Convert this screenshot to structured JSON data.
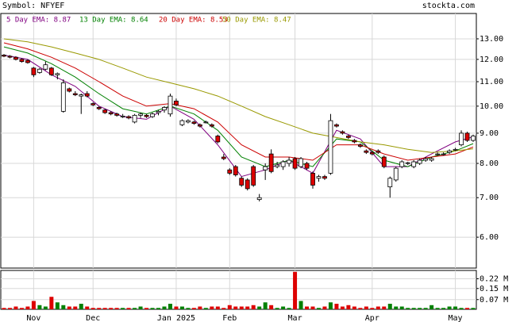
{
  "header": {
    "symbol": "Symbol: NFYEF",
    "site": "stockta.com"
  },
  "chart_data": {
    "type": "candlestick",
    "log_scale": true,
    "categories": [
      null,
      null,
      null,
      null,
      null,
      "Nov",
      null,
      null,
      null,
      null,
      null,
      null,
      null,
      null,
      null,
      "Dec",
      null,
      null,
      null,
      null,
      null,
      null,
      null,
      null,
      null,
      null,
      null,
      null,
      null,
      "Jan 2025",
      null,
      null,
      null,
      null,
      null,
      null,
      null,
      null,
      "Feb",
      null,
      null,
      null,
      null,
      null,
      null,
      null,
      null,
      null,
      null,
      "Mar",
      null,
      null,
      null,
      null,
      null,
      null,
      null,
      null,
      null,
      null,
      null,
      null,
      "Apr",
      null,
      null,
      null,
      null,
      null,
      null,
      null,
      null,
      null,
      null,
      null,
      null,
      null,
      "May",
      null,
      null,
      null
    ],
    "ohlc": [
      [
        12.2,
        12.25,
        12.1,
        12.15
      ],
      [
        12.15,
        12.2,
        12.05,
        12.1
      ],
      [
        12.1,
        12.15,
        11.95,
        12.0
      ],
      [
        12.0,
        12.05,
        11.85,
        11.9
      ],
      [
        11.95,
        12.0,
        11.8,
        11.85
      ],
      [
        11.6,
        11.65,
        11.2,
        11.3
      ],
      [
        11.4,
        11.6,
        11.35,
        11.55
      ],
      [
        11.55,
        11.9,
        11.5,
        11.75
      ],
      [
        11.6,
        11.65,
        11.25,
        11.3
      ],
      [
        11.3,
        11.4,
        11.1,
        11.35
      ],
      [
        9.8,
        11.1,
        9.75,
        10.95
      ],
      [
        10.7,
        10.75,
        10.55,
        10.6
      ],
      [
        10.5,
        10.6,
        10.4,
        10.45
      ],
      [
        10.4,
        10.5,
        9.7,
        10.45
      ],
      [
        10.5,
        10.6,
        10.35,
        10.4
      ],
      [
        10.1,
        10.15,
        10.0,
        10.05
      ],
      [
        9.95,
        10.0,
        9.85,
        9.9
      ],
      [
        9.85,
        9.9,
        9.7,
        9.75
      ],
      [
        9.75,
        9.8,
        9.65,
        9.7
      ],
      [
        9.7,
        9.75,
        9.6,
        9.65
      ],
      [
        9.6,
        9.7,
        9.55,
        9.62
      ],
      [
        9.6,
        9.65,
        9.5,
        9.55
      ],
      [
        9.4,
        9.7,
        9.35,
        9.65
      ],
      [
        9.65,
        9.75,
        9.55,
        9.7
      ],
      [
        9.65,
        9.7,
        9.55,
        9.6
      ],
      [
        9.6,
        9.75,
        9.55,
        9.7
      ],
      [
        9.75,
        9.85,
        9.65,
        9.8
      ],
      [
        9.85,
        10.0,
        9.75,
        9.95
      ],
      [
        9.7,
        10.5,
        9.6,
        10.4
      ],
      [
        10.2,
        10.3,
        10.0,
        10.05
      ],
      [
        9.3,
        9.5,
        9.25,
        9.45
      ],
      [
        9.4,
        9.5,
        9.35,
        9.45
      ],
      [
        9.4,
        9.45,
        9.3,
        9.35
      ],
      [
        9.3,
        9.35,
        9.2,
        9.25
      ],
      [
        9.4,
        9.45,
        9.35,
        9.4
      ],
      [
        9.3,
        9.35,
        9.2,
        9.25
      ],
      [
        8.9,
        8.95,
        8.65,
        8.7
      ],
      [
        8.2,
        8.3,
        8.1,
        8.15
      ],
      [
        7.8,
        7.85,
        7.65,
        7.7
      ],
      [
        7.9,
        7.95,
        7.6,
        7.65
      ],
      [
        7.55,
        7.6,
        7.3,
        7.35
      ],
      [
        7.5,
        7.55,
        7.2,
        7.25
      ],
      [
        7.9,
        7.95,
        7.3,
        7.35
      ],
      [
        6.95,
        7.1,
        6.9,
        7.0
      ],
      [
        7.8,
        8.0,
        7.5,
        7.9
      ],
      [
        8.3,
        8.45,
        7.7,
        7.75
      ],
      [
        7.9,
        8.05,
        7.85,
        7.95
      ],
      [
        7.9,
        8.1,
        7.8,
        8.05
      ],
      [
        8.0,
        8.2,
        7.9,
        8.1
      ],
      [
        8.15,
        8.2,
        7.8,
        7.85
      ],
      [
        7.9,
        8.2,
        7.85,
        8.15
      ],
      [
        8.0,
        8.05,
        7.8,
        7.85
      ],
      [
        7.7,
        7.75,
        7.25,
        7.35
      ],
      [
        7.55,
        7.65,
        7.45,
        7.6
      ],
      [
        7.6,
        7.65,
        7.5,
        7.55
      ],
      [
        7.7,
        9.7,
        7.65,
        9.45
      ],
      [
        9.3,
        9.35,
        9.2,
        9.25
      ],
      [
        9.05,
        9.1,
        8.95,
        9.0
      ],
      [
        8.9,
        8.95,
        8.8,
        8.85
      ],
      [
        8.75,
        8.8,
        8.65,
        8.7
      ],
      [
        8.6,
        8.65,
        8.5,
        8.55
      ],
      [
        8.4,
        8.45,
        8.3,
        8.35
      ],
      [
        8.35,
        8.4,
        8.25,
        8.3
      ],
      [
        8.4,
        8.45,
        8.3,
        8.35
      ],
      [
        8.2,
        8.25,
        7.85,
        7.9
      ],
      [
        7.3,
        7.6,
        7.0,
        7.55
      ],
      [
        7.5,
        7.9,
        7.45,
        7.85
      ],
      [
        7.9,
        8.1,
        7.85,
        8.05
      ],
      [
        8.0,
        8.05,
        7.95,
        8.02
      ],
      [
        7.9,
        8.1,
        7.85,
        8.05
      ],
      [
        8.0,
        8.15,
        7.95,
        8.1
      ],
      [
        8.1,
        8.2,
        8.05,
        8.15
      ],
      [
        8.1,
        8.2,
        8.05,
        8.15
      ],
      [
        8.3,
        8.35,
        8.25,
        8.3
      ],
      [
        8.3,
        8.35,
        8.25,
        8.3
      ],
      [
        8.35,
        8.45,
        8.3,
        8.4
      ],
      [
        8.45,
        8.5,
        8.4,
        8.45
      ],
      [
        8.6,
        9.1,
        8.55,
        9.0
      ],
      [
        9.0,
        9.05,
        8.7,
        8.75
      ],
      [
        8.75,
        8.95,
        8.7,
        8.9
      ]
    ],
    "up_color": "#ffffff",
    "down_color": "#dd0000",
    "series": [
      {
        "name": "5 Day EMA: 8.87",
        "color": "#800080",
        "x": [
          0,
          4,
          8,
          12,
          16,
          20,
          24,
          28,
          32,
          36,
          40,
          44,
          48,
          52,
          56,
          60,
          64,
          68,
          72,
          76,
          79
        ],
        "values": [
          12.2,
          12.0,
          11.3,
          10.8,
          10.0,
          9.6,
          9.5,
          10.0,
          9.5,
          8.6,
          7.6,
          7.8,
          8.1,
          7.7,
          9.1,
          8.8,
          7.9,
          7.9,
          8.3,
          8.7,
          8.87
        ]
      },
      {
        "name": "13 Day EMA: 8.64",
        "color": "#008000",
        "x": [
          0,
          4,
          8,
          12,
          16,
          20,
          24,
          28,
          32,
          36,
          40,
          44,
          48,
          52,
          56,
          60,
          64,
          68,
          72,
          76,
          79
        ],
        "values": [
          12.6,
          12.3,
          11.8,
          11.2,
          10.5,
          9.9,
          9.7,
          10.0,
          9.7,
          9.1,
          8.2,
          7.9,
          8.1,
          7.9,
          8.8,
          8.7,
          8.1,
          7.9,
          8.2,
          8.4,
          8.64
        ]
      },
      {
        "name": "20 Day EMA: 8.53",
        "color": "#cc0000",
        "x": [
          0,
          4,
          8,
          12,
          16,
          20,
          24,
          28,
          32,
          36,
          40,
          44,
          48,
          52,
          56,
          60,
          64,
          68,
          72,
          76,
          79
        ],
        "values": [
          12.8,
          12.5,
          12.1,
          11.6,
          11.0,
          10.4,
          10.0,
          10.1,
          9.9,
          9.4,
          8.6,
          8.2,
          8.2,
          8.1,
          8.6,
          8.6,
          8.3,
          8.1,
          8.2,
          8.3,
          8.53
        ]
      },
      {
        "name": "50 Day EMA: 8.47",
        "color": "#999900",
        "x": [
          0,
          4,
          8,
          12,
          16,
          20,
          24,
          28,
          32,
          36,
          40,
          44,
          48,
          52,
          56,
          60,
          64,
          68,
          72,
          76,
          79
        ],
        "values": [
          13.0,
          12.85,
          12.6,
          12.3,
          12.0,
          11.6,
          11.2,
          10.95,
          10.7,
          10.4,
          10.0,
          9.6,
          9.3,
          9.0,
          8.85,
          8.7,
          8.6,
          8.45,
          8.35,
          8.4,
          8.47
        ]
      }
    ],
    "ylim": [
      5.32,
      14.35
    ],
    "yticks": [
      {
        "value": 13,
        "label": "13.00"
      },
      {
        "value": 12,
        "label": "12.00"
      },
      {
        "value": 11,
        "label": "11.00"
      },
      {
        "value": 10,
        "label": "10.00"
      },
      {
        "value": 9,
        "label": "9.00"
      },
      {
        "value": 8,
        "label": "8.00"
      },
      {
        "value": 7,
        "label": "7.00"
      },
      {
        "value": 6,
        "label": "6.00"
      }
    ],
    "volume": [
      0.01,
      0.01,
      0.02,
      0.01,
      0.02,
      0.06,
      0.03,
      0.02,
      0.09,
      0.05,
      0.03,
      0.02,
      0.02,
      0.04,
      0.02,
      0.01,
      0.01,
      0.01,
      0.01,
      0.01,
      0.01,
      0.01,
      0.01,
      0.02,
      0.01,
      0.01,
      0.01,
      0.02,
      0.04,
      0.02,
      0.02,
      0.01,
      0.01,
      0.02,
      0.01,
      0.02,
      0.02,
      0.01,
      0.03,
      0.02,
      0.02,
      0.02,
      0.03,
      0.02,
      0.05,
      0.03,
      0.01,
      0.02,
      0.01,
      0.27,
      0.06,
      0.02,
      0.02,
      0.01,
      0.02,
      0.05,
      0.04,
      0.02,
      0.03,
      0.02,
      0.01,
      0.02,
      0.01,
      0.02,
      0.02,
      0.04,
      0.02,
      0.02,
      0.01,
      0.01,
      0.01,
      0.01,
      0.03,
      0.01,
      0.01,
      0.02,
      0.02,
      0.01,
      0.01,
      0.01
    ],
    "volume_up_color": "#008000",
    "volume_down_color": "#dd0000",
    "vlim": [
      0,
      0.28
    ],
    "vticks": [
      {
        "value": 0.22,
        "label": "0.22 M"
      },
      {
        "value": 0.15,
        "label": "0.15 M"
      },
      {
        "value": 0.07,
        "label": "0.07 M"
      }
    ],
    "grid": true
  }
}
